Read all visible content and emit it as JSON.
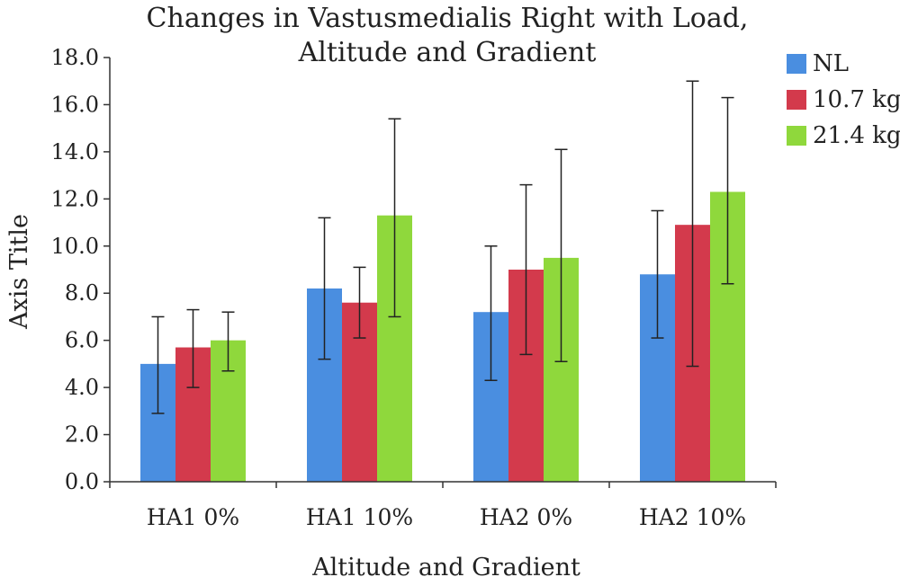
{
  "chart_data": {
    "type": "bar",
    "title_lines": [
      "Changes in Vastusmedialis Right with Load,",
      "Altitude and Gradient"
    ],
    "xlabel": "Altitude and Gradient",
    "ylabel": "Axis Title",
    "ylim": [
      0,
      18
    ],
    "yticks": [
      "0.0",
      "2.0",
      "4.0",
      "6.0",
      "8.0",
      "10.0",
      "12.0",
      "14.0",
      "16.0",
      "18.0"
    ],
    "categories": [
      "HA1 0%",
      "HA1 10%",
      "HA2 0%",
      "HA2 10%"
    ],
    "legend_position": "top-right",
    "grid": false,
    "series": [
      {
        "name": "NL",
        "color": "#4a8ee0",
        "values": [
          5.0,
          8.2,
          7.2,
          8.8
        ],
        "err_low": [
          2.9,
          5.2,
          4.3,
          6.1
        ],
        "err_high": [
          7.0,
          11.2,
          10.0,
          11.5
        ]
      },
      {
        "name": "10.7 kg",
        "color": "#d33a4c",
        "values": [
          5.7,
          7.6,
          9.0,
          10.9
        ],
        "err_low": [
          4.0,
          6.1,
          5.4,
          4.9
        ],
        "err_high": [
          7.3,
          9.1,
          12.6,
          17.0
        ]
      },
      {
        "name": "21.4 kg",
        "color": "#8fd83c",
        "values": [
          6.0,
          11.3,
          9.5,
          12.3
        ],
        "err_low": [
          4.7,
          7.0,
          5.1,
          8.4
        ],
        "err_high": [
          7.2,
          15.4,
          14.1,
          16.3
        ]
      }
    ]
  }
}
